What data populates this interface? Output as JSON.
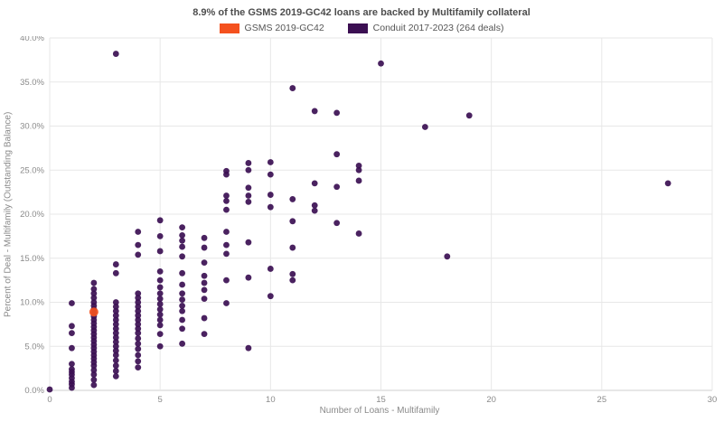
{
  "chart_data": {
    "type": "scatter",
    "title": "8.9% of the GSMS 2019-GC42 loans are backed by Multifamily collateral",
    "xlabel": "Number of Loans - Multifamily",
    "ylabel": "Percent of Deal - Multifamily (Outstanding Balance)",
    "xlim": [
      0,
      30
    ],
    "ylim": [
      0,
      40
    ],
    "grid": true,
    "legend_position": "top-center",
    "x_ticks": [
      {
        "value": 0,
        "label": "0"
      },
      {
        "value": 5,
        "label": "5"
      },
      {
        "value": 10,
        "label": "10"
      },
      {
        "value": 15,
        "label": "15"
      },
      {
        "value": 20,
        "label": "20"
      },
      {
        "value": 25,
        "label": "25"
      },
      {
        "value": 30,
        "label": "30"
      }
    ],
    "y_ticks": [
      {
        "value": 0,
        "label": "0.0%"
      },
      {
        "value": 5,
        "label": "5.0%"
      },
      {
        "value": 10,
        "label": "10.0%"
      },
      {
        "value": 15,
        "label": "15.0%"
      },
      {
        "value": 20,
        "label": "20.0%"
      },
      {
        "value": 25,
        "label": "25.0%"
      },
      {
        "value": 30,
        "label": "30.0%"
      },
      {
        "value": 35,
        "label": "35.0%"
      },
      {
        "value": 40,
        "label": "40.0%"
      }
    ],
    "series": [
      {
        "name": "GSMS 2019-GC42",
        "color": "#f4511e",
        "marker_size": 5,
        "points": [
          [
            2,
            8.9
          ]
        ]
      },
      {
        "name": "Conduit 2017-2023 (264 deals)",
        "color": "#3b0f52",
        "marker_size": 3.4,
        "points": [
          [
            0,
            0.1
          ],
          [
            1,
            0.3
          ],
          [
            1,
            0.7
          ],
          [
            1,
            1.0
          ],
          [
            1,
            1.4
          ],
          [
            1,
            1.8
          ],
          [
            1,
            2.1
          ],
          [
            1,
            2.4
          ],
          [
            1,
            3.0
          ],
          [
            1,
            4.8
          ],
          [
            1,
            6.5
          ],
          [
            1,
            7.3
          ],
          [
            1,
            9.9
          ],
          [
            2,
            0.6
          ],
          [
            2,
            1.2
          ],
          [
            2,
            1.8
          ],
          [
            2,
            2.3
          ],
          [
            2,
            2.8
          ],
          [
            2,
            3.2
          ],
          [
            2,
            3.6
          ],
          [
            2,
            4.0
          ],
          [
            2,
            4.4
          ],
          [
            2,
            4.8
          ],
          [
            2,
            5.2
          ],
          [
            2,
            5.6
          ],
          [
            2,
            6.0
          ],
          [
            2,
            6.4
          ],
          [
            2,
            6.8
          ],
          [
            2,
            7.2
          ],
          [
            2,
            7.6
          ],
          [
            2,
            8.0
          ],
          [
            2,
            8.4
          ],
          [
            2,
            8.8
          ],
          [
            2,
            9.2
          ],
          [
            2,
            9.6
          ],
          [
            2,
            10.0
          ],
          [
            2,
            10.5
          ],
          [
            2,
            11.0
          ],
          [
            2,
            11.5
          ],
          [
            2,
            12.2
          ],
          [
            3,
            1.6
          ],
          [
            3,
            2.2
          ],
          [
            3,
            2.8
          ],
          [
            3,
            3.4
          ],
          [
            3,
            4.0
          ],
          [
            3,
            4.5
          ],
          [
            3,
            5.0
          ],
          [
            3,
            5.5
          ],
          [
            3,
            6.0
          ],
          [
            3,
            6.5
          ],
          [
            3,
            7.0
          ],
          [
            3,
            7.5
          ],
          [
            3,
            8.0
          ],
          [
            3,
            8.5
          ],
          [
            3,
            9.0
          ],
          [
            3,
            9.5
          ],
          [
            3,
            10.0
          ],
          [
            3,
            13.3
          ],
          [
            3,
            14.3
          ],
          [
            3,
            38.2
          ],
          [
            4,
            2.6
          ],
          [
            4,
            3.3
          ],
          [
            4,
            4.0
          ],
          [
            4,
            4.7
          ],
          [
            4,
            5.3
          ],
          [
            4,
            5.9
          ],
          [
            4,
            6.5
          ],
          [
            4,
            7.0
          ],
          [
            4,
            7.5
          ],
          [
            4,
            8.0
          ],
          [
            4,
            8.5
          ],
          [
            4,
            9.0
          ],
          [
            4,
            9.5
          ],
          [
            4,
            10.0
          ],
          [
            4,
            10.5
          ],
          [
            4,
            11.0
          ],
          [
            4,
            15.4
          ],
          [
            4,
            16.5
          ],
          [
            4,
            18.0
          ],
          [
            5,
            5.0
          ],
          [
            5,
            6.4
          ],
          [
            5,
            7.4
          ],
          [
            5,
            8.0
          ],
          [
            5,
            8.6
          ],
          [
            5,
            9.2
          ],
          [
            5,
            9.8
          ],
          [
            5,
            10.4
          ],
          [
            5,
            11.0
          ],
          [
            5,
            11.7
          ],
          [
            5,
            12.5
          ],
          [
            5,
            13.5
          ],
          [
            5,
            15.8
          ],
          [
            5,
            17.5
          ],
          [
            5,
            19.3
          ],
          [
            6,
            5.3
          ],
          [
            6,
            7.0
          ],
          [
            6,
            8.0
          ],
          [
            6,
            9.0
          ],
          [
            6,
            9.6
          ],
          [
            6,
            10.3
          ],
          [
            6,
            11.0
          ],
          [
            6,
            12.0
          ],
          [
            6,
            13.3
          ],
          [
            6,
            15.2
          ],
          [
            6,
            16.3
          ],
          [
            6,
            17.0
          ],
          [
            6,
            17.6
          ],
          [
            6,
            18.5
          ],
          [
            7,
            6.4
          ],
          [
            7,
            8.2
          ],
          [
            7,
            10.4
          ],
          [
            7,
            11.4
          ],
          [
            7,
            12.2
          ],
          [
            7,
            13.0
          ],
          [
            7,
            14.5
          ],
          [
            7,
            16.2
          ],
          [
            7,
            17.3
          ],
          [
            8,
            9.9
          ],
          [
            8,
            12.5
          ],
          [
            8,
            15.5
          ],
          [
            8,
            16.5
          ],
          [
            8,
            18.0
          ],
          [
            8,
            20.5
          ],
          [
            8,
            21.5
          ],
          [
            8,
            22.1
          ],
          [
            8,
            24.5
          ],
          [
            8,
            24.9
          ],
          [
            9,
            4.8
          ],
          [
            9,
            12.8
          ],
          [
            9,
            16.8
          ],
          [
            9,
            21.4
          ],
          [
            9,
            22.1
          ],
          [
            9,
            23.0
          ],
          [
            9,
            25.0
          ],
          [
            9,
            25.8
          ],
          [
            10,
            10.7
          ],
          [
            10,
            13.8
          ],
          [
            10,
            20.8
          ],
          [
            10,
            22.2
          ],
          [
            10,
            24.5
          ],
          [
            10,
            25.9
          ],
          [
            11,
            12.5
          ],
          [
            11,
            13.2
          ],
          [
            11,
            16.2
          ],
          [
            11,
            19.2
          ],
          [
            11,
            21.7
          ],
          [
            11,
            34.3
          ],
          [
            12,
            20.4
          ],
          [
            12,
            21.0
          ],
          [
            12,
            23.5
          ],
          [
            12,
            31.7
          ],
          [
            13,
            19.0
          ],
          [
            13,
            23.1
          ],
          [
            13,
            26.8
          ],
          [
            13,
            31.5
          ],
          [
            14,
            17.8
          ],
          [
            14,
            23.8
          ],
          [
            14,
            25.0
          ],
          [
            14,
            25.5
          ],
          [
            15,
            37.1
          ],
          [
            17,
            29.9
          ],
          [
            18,
            15.2
          ],
          [
            19,
            31.2
          ],
          [
            28,
            23.5
          ]
        ]
      }
    ]
  }
}
